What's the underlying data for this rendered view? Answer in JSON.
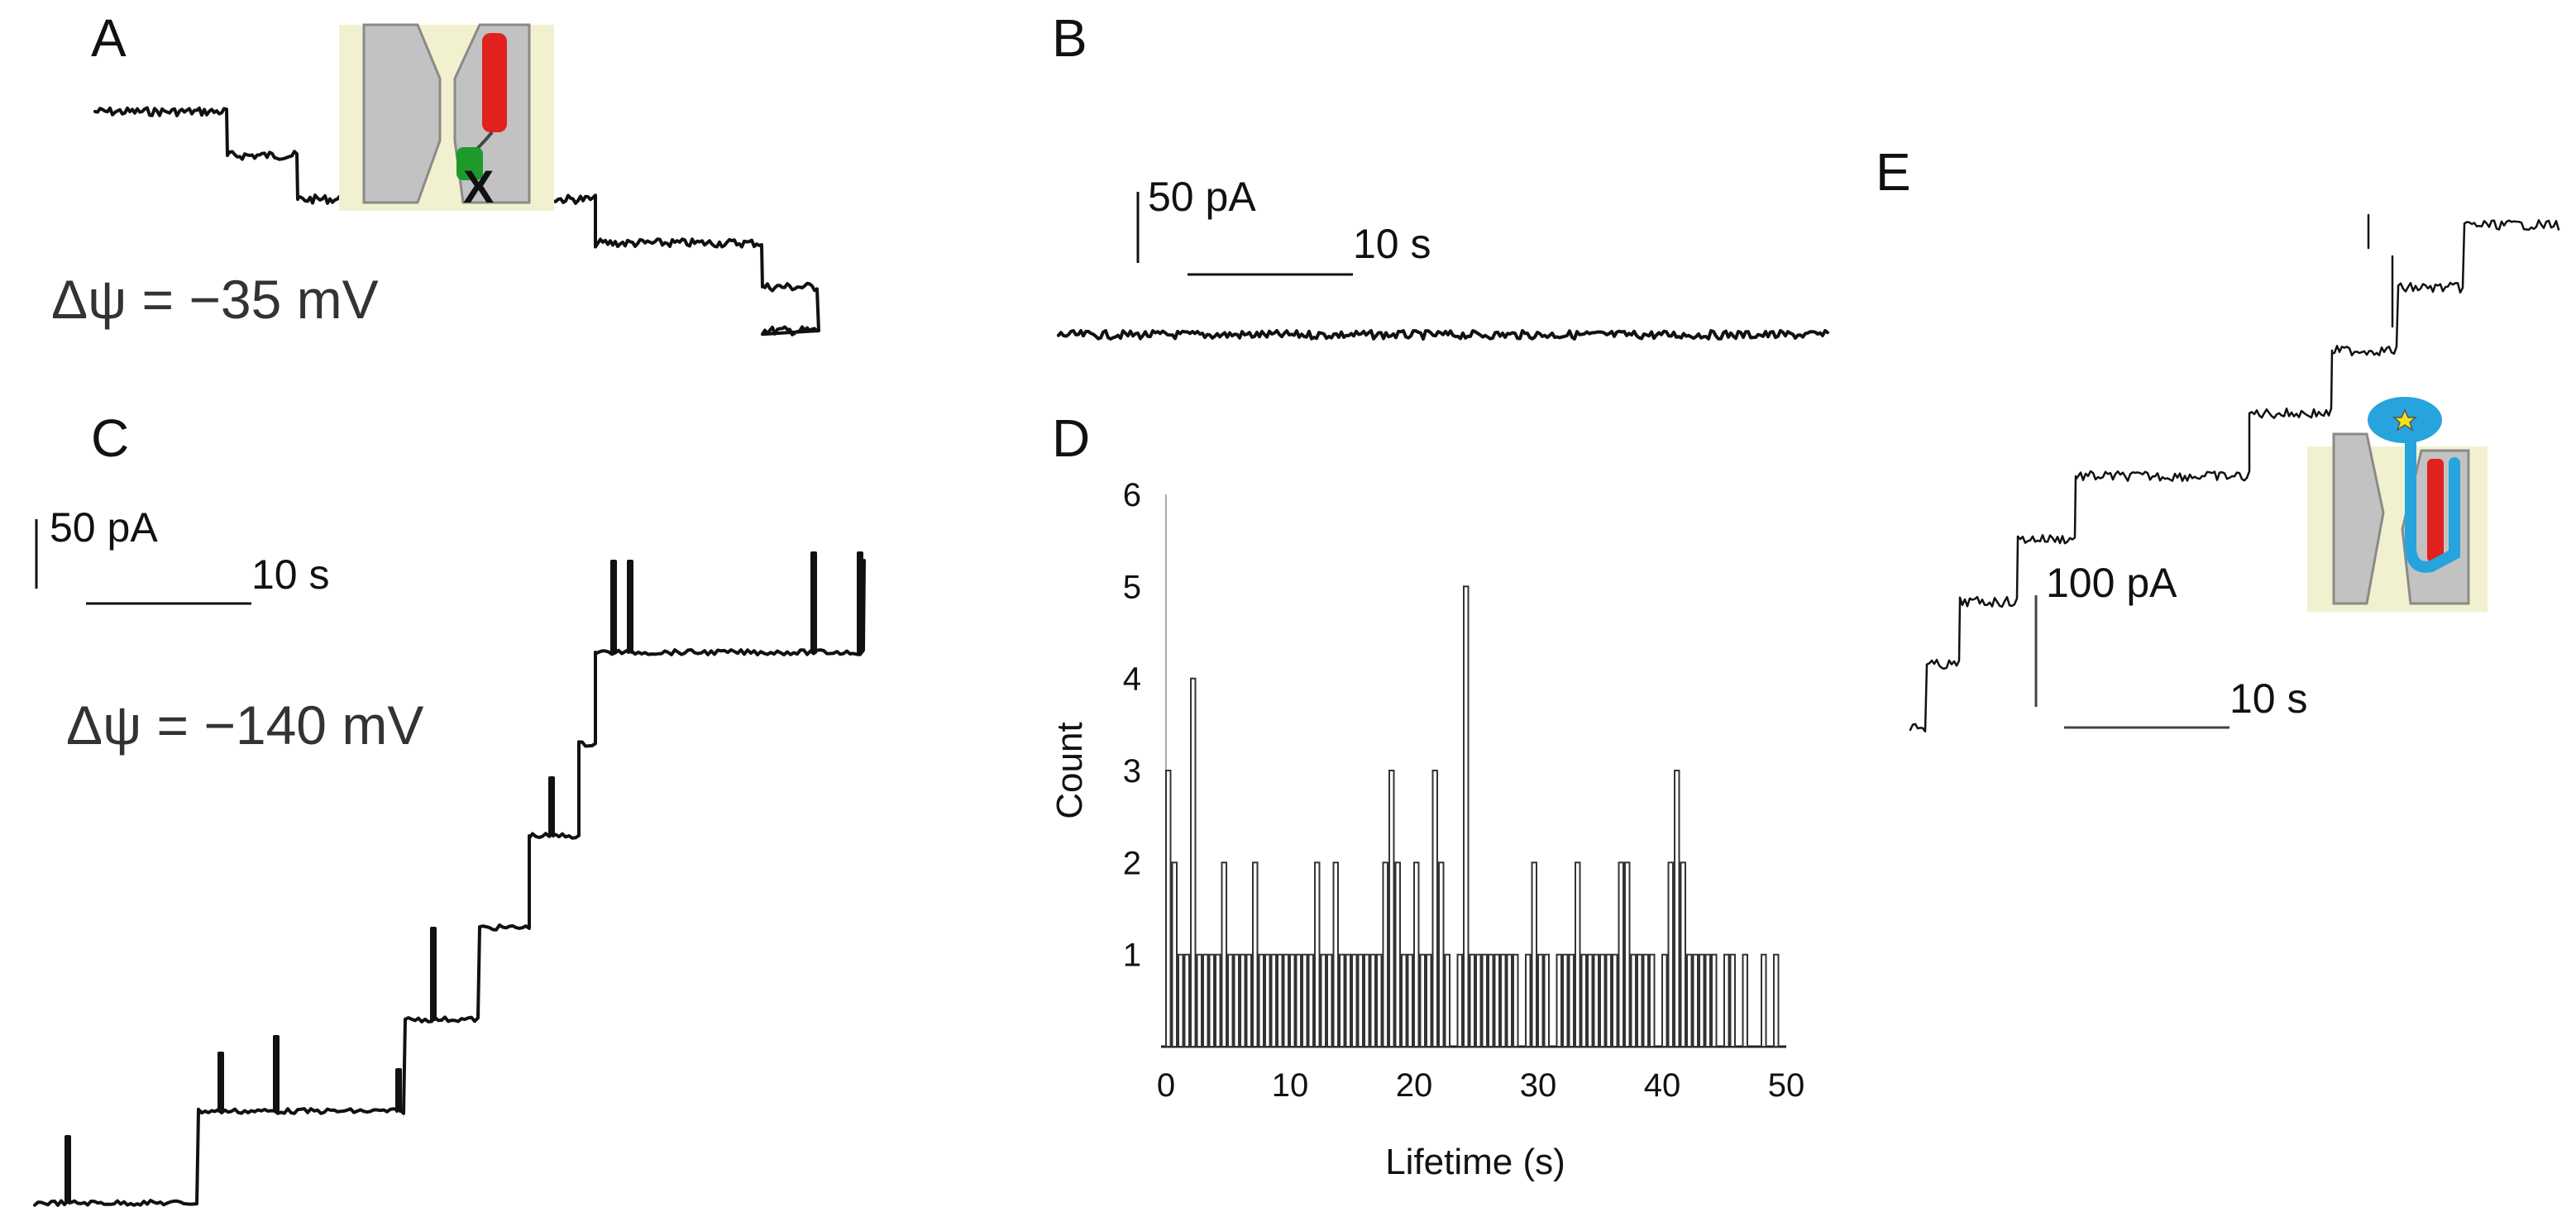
{
  "figure": {
    "panel_labels": {
      "A": "A",
      "B": "B",
      "C": "C",
      "D": "D",
      "E": "E"
    }
  },
  "panel_a": {
    "voltage": "Δψ = −35 mV",
    "levels": [
      5,
      4,
      3,
      2,
      1,
      0
    ],
    "inset_mark": "X"
  },
  "panel_b": {
    "current_scale": "50 pA",
    "time_scale": "10 s",
    "level": 0
  },
  "panel_c": {
    "current_scale": "50 pA",
    "time_scale": "10 s",
    "voltage": "Δψ = −140 mV",
    "levels": [
      0,
      1,
      2,
      3,
      4,
      5,
      6,
      7
    ]
  },
  "panel_e": {
    "current_scale": "100 pA",
    "time_scale": "10 s",
    "levels": [
      0,
      1,
      2,
      3,
      4,
      5,
      6,
      7,
      8
    ]
  },
  "chart_data": {
    "type": "bar",
    "title": "",
    "xlabel": "Lifetime (s)",
    "ylabel": "Count",
    "xlim": [
      0,
      50
    ],
    "ylim": [
      0,
      6
    ],
    "xticks": [
      0,
      10,
      20,
      30,
      40,
      50
    ],
    "yticks": [
      1,
      2,
      3,
      4,
      5,
      6
    ],
    "x": [
      0,
      0.5,
      1,
      1.5,
      2,
      2.5,
      3,
      3.5,
      4,
      4.5,
      5,
      5.5,
      6,
      6.5,
      7,
      7.5,
      8,
      8.5,
      9,
      9.5,
      10,
      10.5,
      11,
      11.5,
      12,
      12.5,
      13,
      13.5,
      14,
      14.5,
      15,
      15.5,
      16,
      16.5,
      17,
      17.5,
      18,
      18.5,
      19,
      19.5,
      20,
      20.5,
      21,
      21.5,
      22,
      22.5,
      23,
      23.5,
      24,
      24.5,
      25,
      25.5,
      26,
      26.5,
      27,
      27.5,
      28,
      28.5,
      29,
      29.5,
      30,
      30.5,
      31,
      31.5,
      32,
      32.5,
      33,
      33.5,
      34,
      34.5,
      35,
      35.5,
      36,
      36.5,
      37,
      37.5,
      38,
      38.5,
      39,
      39.5,
      40,
      40.5,
      41,
      41.5,
      42,
      42.5,
      43,
      43.5,
      44,
      44.5,
      45,
      45.5,
      46,
      46.5,
      47,
      47.5,
      48,
      48.5,
      49
    ],
    "values": [
      3,
      2,
      1,
      1,
      4,
      1,
      1,
      1,
      1,
      2,
      1,
      1,
      1,
      1,
      2,
      1,
      1,
      1,
      1,
      1,
      1,
      1,
      1,
      1,
      2,
      1,
      1,
      2,
      1,
      1,
      1,
      1,
      1,
      1,
      1,
      2,
      3,
      2,
      1,
      1,
      2,
      1,
      1,
      3,
      2,
      1,
      0,
      1,
      5,
      1,
      1,
      1,
      1,
      1,
      1,
      1,
      1,
      0,
      1,
      2,
      1,
      1,
      0,
      1,
      1,
      1,
      2,
      1,
      1,
      1,
      1,
      1,
      1,
      2,
      2,
      1,
      1,
      1,
      1,
      0,
      1,
      2,
      3,
      2,
      1,
      1,
      1,
      1,
      1,
      0,
      1,
      1,
      0,
      1,
      0,
      0,
      1,
      0,
      1
    ]
  }
}
